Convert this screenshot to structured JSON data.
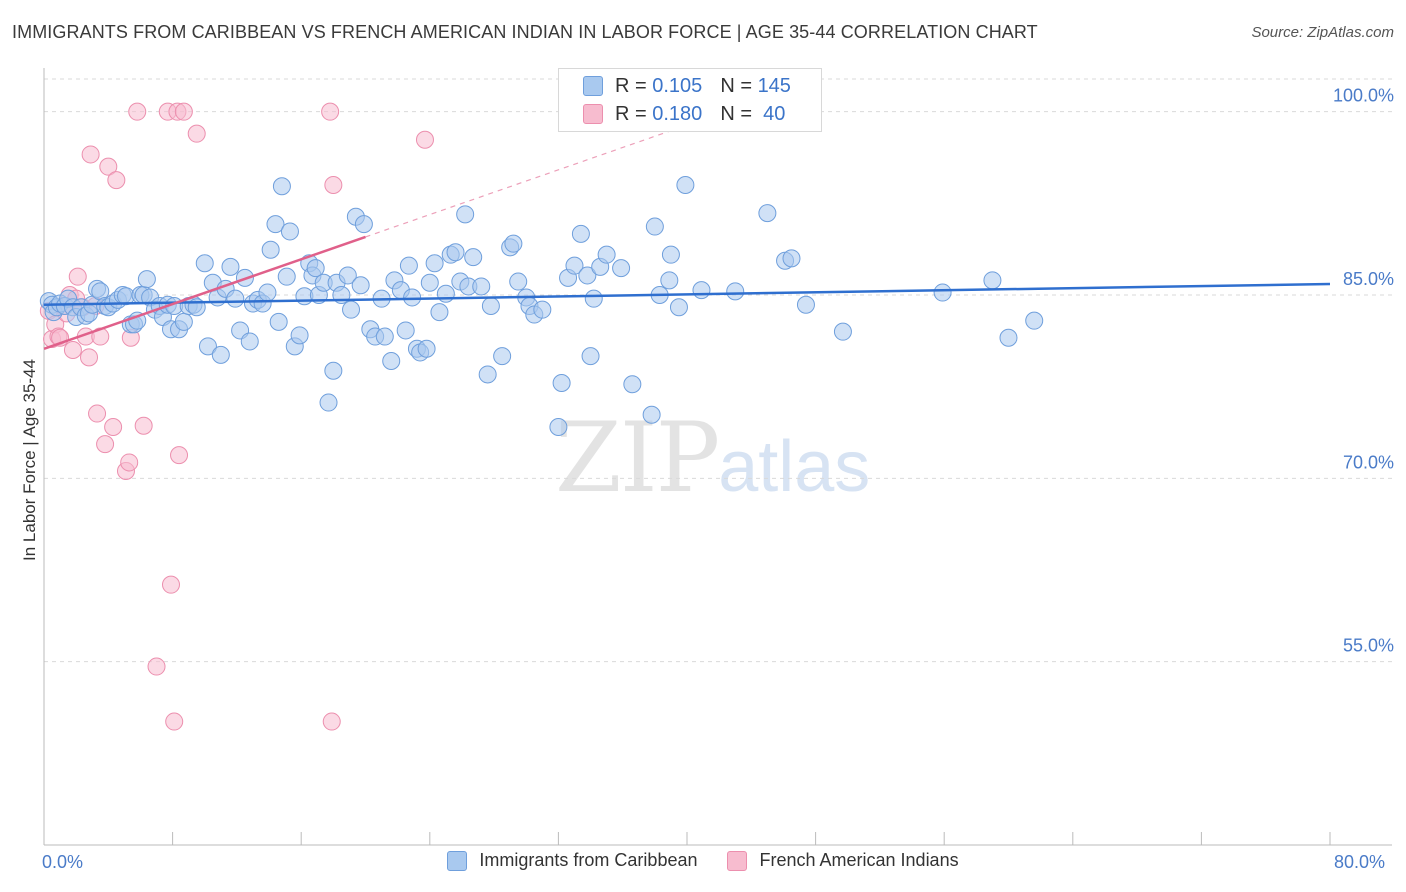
{
  "header": {
    "title": "IMMIGRANTS FROM CARIBBEAN VS FRENCH AMERICAN INDIAN IN LABOR FORCE | AGE 35-44 CORRELATION CHART",
    "source": "Source: ZipAtlas.com"
  },
  "watermark": {
    "zip": "ZIP",
    "atlas": "atlas"
  },
  "legend": {
    "rows": [
      {
        "r_label": "R = ",
        "r_value": "0.105",
        "n_label": "N = ",
        "n_value": "145"
      },
      {
        "r_label": "R = ",
        "r_value": "0.180",
        "n_label": "N = ",
        "n_value": " 40"
      }
    ],
    "bottom": [
      "Immigrants from Caribbean",
      "French American Indians"
    ]
  },
  "colors": {
    "blue_fill": "#a9c9ef",
    "blue_stroke": "#6f9fdc",
    "blue_line": "#2f6fcf",
    "pink_fill": "#f7bccf",
    "pink_stroke": "#ec8fae",
    "pink_line": "#e0608a",
    "axis_text": "#4a7bc8",
    "grid": "#d9d9d9"
  },
  "chart_data": {
    "type": "scatter",
    "title": "IMMIGRANTS FROM CARIBBEAN VS FRENCH AMERICAN INDIAN IN LABOR FORCE | AGE 35-44 CORRELATION CHART",
    "xlabel": "",
    "ylabel": "In Labor Force | Age 35-44",
    "xlim": [
      0,
      80
    ],
    "ylim": [
      40,
      103
    ],
    "x_tick_labels": [
      "0.0%",
      "80.0%"
    ],
    "y_ticks": [
      55,
      70,
      85,
      100
    ],
    "y_tick_labels": [
      "55.0%",
      "70.0%",
      "85.0%",
      "100.0%"
    ],
    "series": [
      {
        "name": "Immigrants from Caribbean",
        "R": 0.105,
        "N": 145,
        "trend": {
          "x": [
            0,
            80
          ],
          "y": [
            84.2,
            85.9
          ],
          "dashed_from_x": null
        },
        "points": [
          [
            0.3,
            84.5
          ],
          [
            0.5,
            84.2
          ],
          [
            0.6,
            83.6
          ],
          [
            0.8,
            84.0
          ],
          [
            1.0,
            84.3
          ],
          [
            1.3,
            84.1
          ],
          [
            1.5,
            84.7
          ],
          [
            1.8,
            84.0
          ],
          [
            2.0,
            83.2
          ],
          [
            2.3,
            84.0
          ],
          [
            2.6,
            83.3
          ],
          [
            2.8,
            83.5
          ],
          [
            3.0,
            84.2
          ],
          [
            3.3,
            85.5
          ],
          [
            3.5,
            85.3
          ],
          [
            3.8,
            84.1
          ],
          [
            4.0,
            84.0
          ],
          [
            4.3,
            84.3
          ],
          [
            4.6,
            84.6
          ],
          [
            4.9,
            85.0
          ],
          [
            5.1,
            84.9
          ],
          [
            5.4,
            82.6
          ],
          [
            5.6,
            82.6
          ],
          [
            5.8,
            82.9
          ],
          [
            6.0,
            85.0
          ],
          [
            6.2,
            85.0
          ],
          [
            6.4,
            86.3
          ],
          [
            6.6,
            84.8
          ],
          [
            6.9,
            83.8
          ],
          [
            7.2,
            84.1
          ],
          [
            7.4,
            83.2
          ],
          [
            7.7,
            84.2
          ],
          [
            7.9,
            82.2
          ],
          [
            8.1,
            84.1
          ],
          [
            8.4,
            82.2
          ],
          [
            8.7,
            82.8
          ],
          [
            9.0,
            84.1
          ],
          [
            9.3,
            84.2
          ],
          [
            9.5,
            84.0
          ],
          [
            10.0,
            87.6
          ],
          [
            10.2,
            80.8
          ],
          [
            10.5,
            86.0
          ],
          [
            10.8,
            84.8
          ],
          [
            11.0,
            80.1
          ],
          [
            11.3,
            85.5
          ],
          [
            11.6,
            87.3
          ],
          [
            11.9,
            84.7
          ],
          [
            12.2,
            82.1
          ],
          [
            12.5,
            86.4
          ],
          [
            12.8,
            81.2
          ],
          [
            13.0,
            84.3
          ],
          [
            13.3,
            84.6
          ],
          [
            13.6,
            84.3
          ],
          [
            13.9,
            85.2
          ],
          [
            14.1,
            88.7
          ],
          [
            14.4,
            90.8
          ],
          [
            14.6,
            82.8
          ],
          [
            14.8,
            93.9
          ],
          [
            15.1,
            86.5
          ],
          [
            15.3,
            90.2
          ],
          [
            15.6,
            80.8
          ],
          [
            15.9,
            81.7
          ],
          [
            16.2,
            84.9
          ],
          [
            16.5,
            87.6
          ],
          [
            16.7,
            86.6
          ],
          [
            16.9,
            87.2
          ],
          [
            17.1,
            85.0
          ],
          [
            17.4,
            86.0
          ],
          [
            17.7,
            76.2
          ],
          [
            18.0,
            78.8
          ],
          [
            18.2,
            86.0
          ],
          [
            18.5,
            85.0
          ],
          [
            18.9,
            86.6
          ],
          [
            19.1,
            83.8
          ],
          [
            19.4,
            91.4
          ],
          [
            19.7,
            85.8
          ],
          [
            19.9,
            90.8
          ],
          [
            20.3,
            82.2
          ],
          [
            20.6,
            81.6
          ],
          [
            21.0,
            84.7
          ],
          [
            21.2,
            81.6
          ],
          [
            21.6,
            79.6
          ],
          [
            21.8,
            86.2
          ],
          [
            22.2,
            85.4
          ],
          [
            22.5,
            82.1
          ],
          [
            22.7,
            87.4
          ],
          [
            22.9,
            84.8
          ],
          [
            23.2,
            80.6
          ],
          [
            23.4,
            80.3
          ],
          [
            23.8,
            80.6
          ],
          [
            24.0,
            86.0
          ],
          [
            24.3,
            87.6
          ],
          [
            24.6,
            83.6
          ],
          [
            25.0,
            85.1
          ],
          [
            25.3,
            88.3
          ],
          [
            25.6,
            88.5
          ],
          [
            25.9,
            86.1
          ],
          [
            26.2,
            91.6
          ],
          [
            26.4,
            85.7
          ],
          [
            26.7,
            88.1
          ],
          [
            27.2,
            85.7
          ],
          [
            27.6,
            78.5
          ],
          [
            27.8,
            84.1
          ],
          [
            28.5,
            80.0
          ],
          [
            29.0,
            88.9
          ],
          [
            29.2,
            89.2
          ],
          [
            29.5,
            86.1
          ],
          [
            30.0,
            84.8
          ],
          [
            30.2,
            84.1
          ],
          [
            30.5,
            83.4
          ],
          [
            31.0,
            83.8
          ],
          [
            32.0,
            74.2
          ],
          [
            32.2,
            77.8
          ],
          [
            32.6,
            86.4
          ],
          [
            33.0,
            87.4
          ],
          [
            33.4,
            90.0
          ],
          [
            33.8,
            86.6
          ],
          [
            34.0,
            80.0
          ],
          [
            34.2,
            84.7
          ],
          [
            34.6,
            87.3
          ],
          [
            35.0,
            88.3
          ],
          [
            35.9,
            87.2
          ],
          [
            36.6,
            77.7
          ],
          [
            37.8,
            75.2
          ],
          [
            38.0,
            90.6
          ],
          [
            38.3,
            85.0
          ],
          [
            38.9,
            86.2
          ],
          [
            39.0,
            88.3
          ],
          [
            39.5,
            84.0
          ],
          [
            39.9,
            94.0
          ],
          [
            40.9,
            85.4
          ],
          [
            43.0,
            85.3
          ],
          [
            45.0,
            91.7
          ],
          [
            46.1,
            87.8
          ],
          [
            46.5,
            88.0
          ],
          [
            47.4,
            84.2
          ],
          [
            49.7,
            82.0
          ],
          [
            55.9,
            85.2
          ],
          [
            59.0,
            86.2
          ],
          [
            60.0,
            81.5
          ],
          [
            61.6,
            82.9
          ]
        ]
      },
      {
        "name": "French American Indians",
        "R": 0.18,
        "N": 40,
        "trend": {
          "x": [
            0,
            40
          ],
          "y": [
            80.6,
            98.9
          ],
          "dashed_from_x": 20
        },
        "points": [
          [
            0.3,
            83.7
          ],
          [
            0.5,
            81.4
          ],
          [
            0.7,
            82.6
          ],
          [
            0.9,
            81.6
          ],
          [
            1.0,
            81.5
          ],
          [
            1.2,
            84.1
          ],
          [
            1.4,
            83.5
          ],
          [
            1.6,
            85.0
          ],
          [
            1.8,
            80.5
          ],
          [
            2.0,
            84.7
          ],
          [
            2.1,
            86.5
          ],
          [
            2.4,
            84.0
          ],
          [
            2.6,
            81.6
          ],
          [
            2.8,
            79.9
          ],
          [
            2.9,
            96.5
          ],
          [
            3.2,
            84.1
          ],
          [
            3.3,
            75.3
          ],
          [
            3.5,
            81.6
          ],
          [
            3.8,
            72.8
          ],
          [
            4.0,
            95.5
          ],
          [
            4.3,
            74.2
          ],
          [
            4.5,
            94.4
          ],
          [
            5.1,
            70.6
          ],
          [
            5.3,
            71.3
          ],
          [
            5.4,
            81.5
          ],
          [
            5.8,
            100.0
          ],
          [
            6.2,
            74.3
          ],
          [
            7.0,
            54.6
          ],
          [
            7.7,
            100.0
          ],
          [
            7.9,
            61.3
          ],
          [
            8.1,
            50.1
          ],
          [
            8.3,
            100.0
          ],
          [
            8.4,
            71.9
          ],
          [
            8.7,
            100.0
          ],
          [
            9.5,
            98.2
          ],
          [
            17.8,
            100.0
          ],
          [
            18.0,
            94.0
          ],
          [
            17.9,
            50.1
          ],
          [
            23.7,
            97.7
          ]
        ]
      }
    ]
  }
}
